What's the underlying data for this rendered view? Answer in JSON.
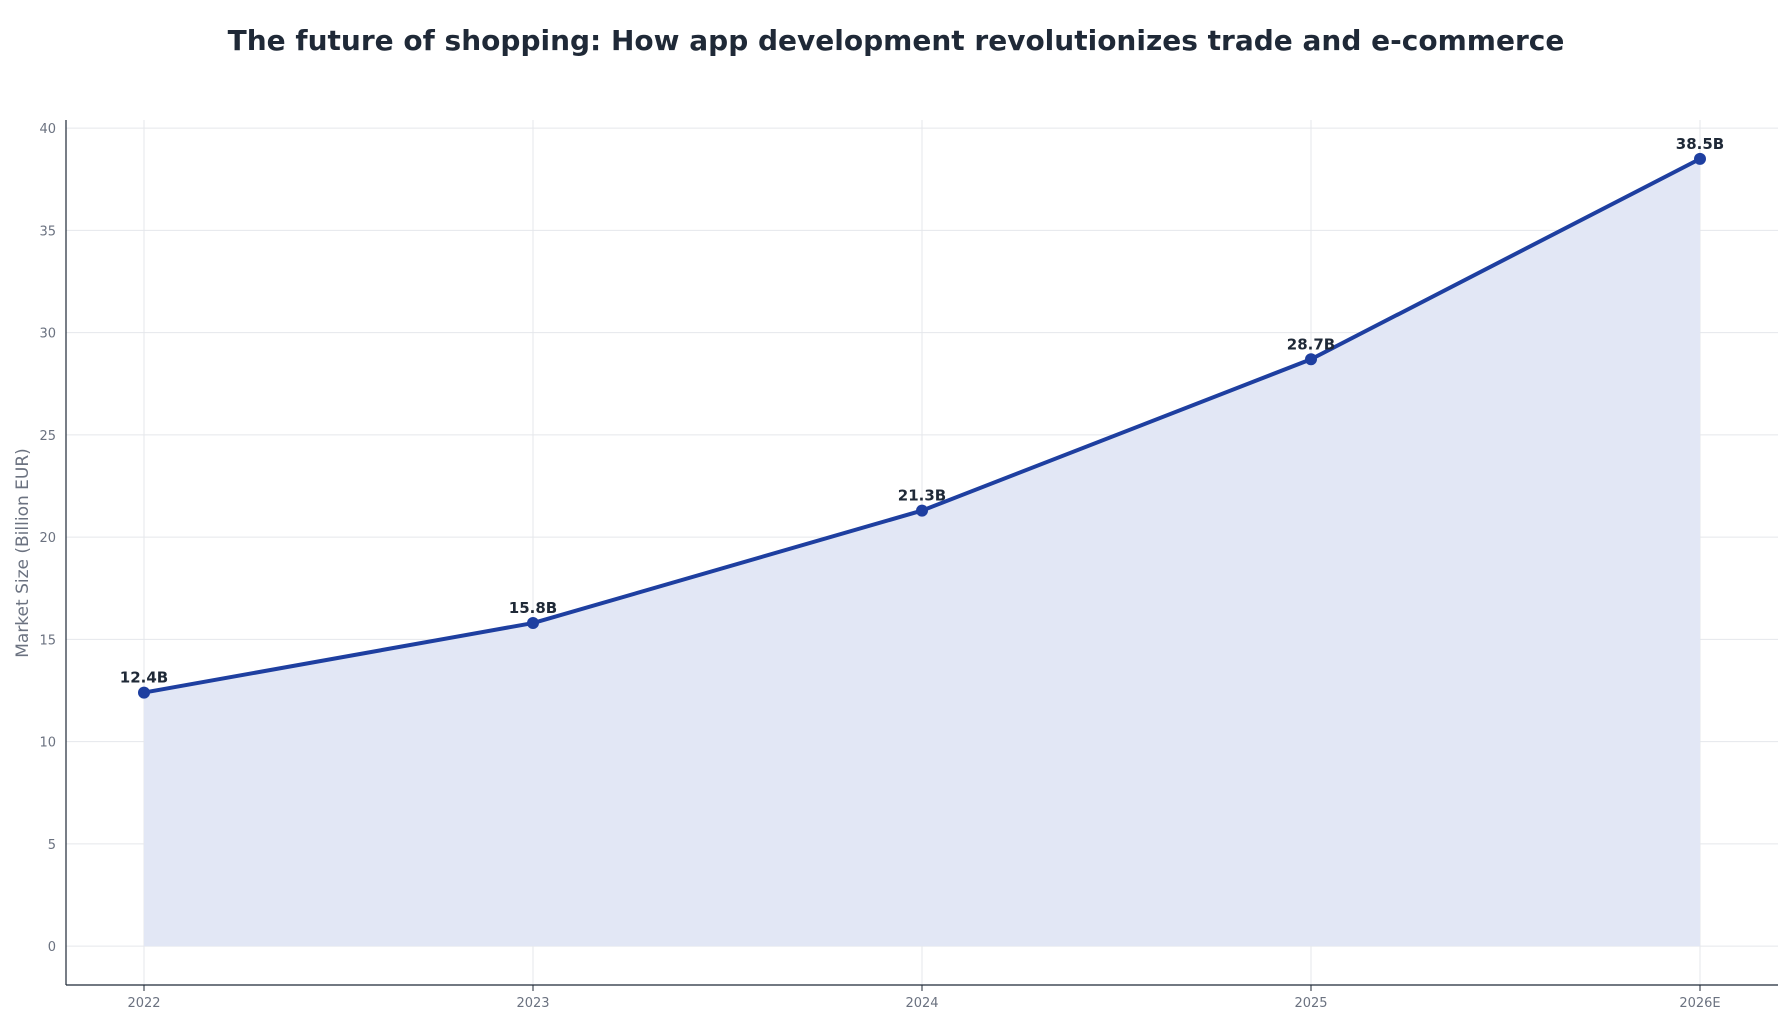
{
  "chart_data": {
    "type": "area",
    "title": "The future of shopping: How app development revolutionizes trade and e-commerce",
    "xlabel": "",
    "ylabel": "Market Size (Billion EUR)",
    "categories": [
      "2022",
      "2023",
      "2024",
      "2025",
      "2026E"
    ],
    "series": [
      {
        "values": [
          12.4,
          15.8,
          21.3,
          28.7,
          38.5
        ],
        "data_labels": [
          "12.4B",
          "15.8B",
          "21.3B",
          "28.7B",
          "38.5B"
        ]
      }
    ],
    "ylim": [
      -1.9,
      40.4
    ],
    "yticks": [
      0,
      5,
      10,
      15,
      20,
      25,
      30,
      35,
      40
    ],
    "grid": true,
    "legend": "none",
    "colors": {
      "line": "#1e3fa0",
      "fill": "#e2e7f5",
      "grid": "#e5e7eb",
      "axis": "#1f2937",
      "tick_text": "#6b7280",
      "label_text": "#1f2937"
    }
  }
}
